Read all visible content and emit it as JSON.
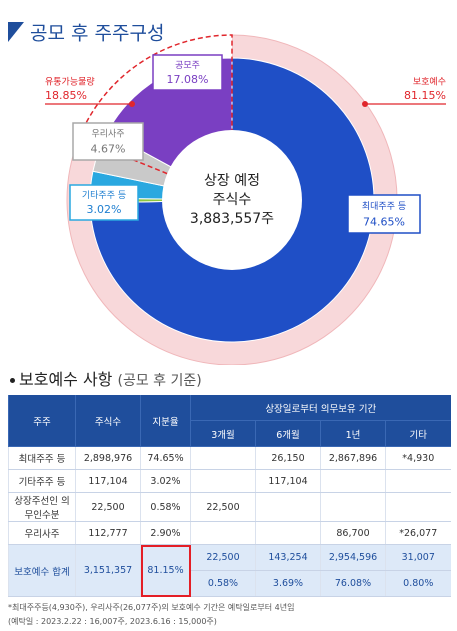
{
  "title": "공모 후 주주구성",
  "chart_data": {
    "type": "pie",
    "categories": [
      "최대주주 등",
      null,
      "기타주주 등",
      "우리사주",
      "공모주"
    ],
    "values": [
      74.65,
      0.58,
      3.02,
      4.67,
      17.08
    ],
    "value_labels": [
      "74.65%",
      null,
      "3.02%",
      "4.67%",
      "17.08%"
    ],
    "colors": [
      "#1f4fc6",
      "#8cc63f",
      "#2aa8e0",
      "#c9c9c9",
      "#7a3fc2"
    ],
    "outer_ring": {
      "categories": [
        "보호예수",
        "유통가능물량"
      ],
      "values": [
        81.15,
        18.85
      ],
      "value_labels": [
        "81.15%",
        "18.85%"
      ],
      "colors": [
        "#f8d8da",
        "#ffffff"
      ]
    },
    "center_label": [
      "상장 예정",
      "주식수",
      "3,883,557주"
    ]
  },
  "section_title": "보호예수 사항",
  "section_subtitle": "(공모 후 기준)",
  "table": {
    "header": [
      "주주",
      "주식수",
      "지분율",
      "상장일로부터 의무보유 기간"
    ],
    "subheader": [
      "3개월",
      "6개월",
      "1년",
      "기타"
    ],
    "rows": [
      [
        "최대주주 등",
        "2,898,976",
        "74.65%",
        null,
        "26,150",
        "2,867,896",
        "*4,930"
      ],
      [
        "기타주주 등",
        "117,104",
        "3.02%",
        null,
        "117,104",
        null,
        null
      ],
      [
        "상장주선인 의무인수분",
        "22,500",
        "0.58%",
        "22,500",
        null,
        null,
        null
      ],
      [
        "우리사주",
        "112,777",
        "2.90%",
        null,
        null,
        "86,700",
        "*26,077"
      ]
    ],
    "total": {
      "label": "보호예수 합계",
      "shares": "3,151,357",
      "ratio": "81.15%",
      "counts": [
        "22,500",
        "143,254",
        "2,954,596",
        "31,007"
      ],
      "ratios": [
        "0.58%",
        "3.69%",
        "76.08%",
        "0.80%"
      ]
    }
  },
  "footnotes": [
    "*최대주주등(4,930주), 우리사주(26,077주)의 보호예수 기간은 예탁일로부터 4년임",
    "(예탁일 : 2023.2.22 : 16,007주, 2023.6.16 : 15,000주)"
  ]
}
